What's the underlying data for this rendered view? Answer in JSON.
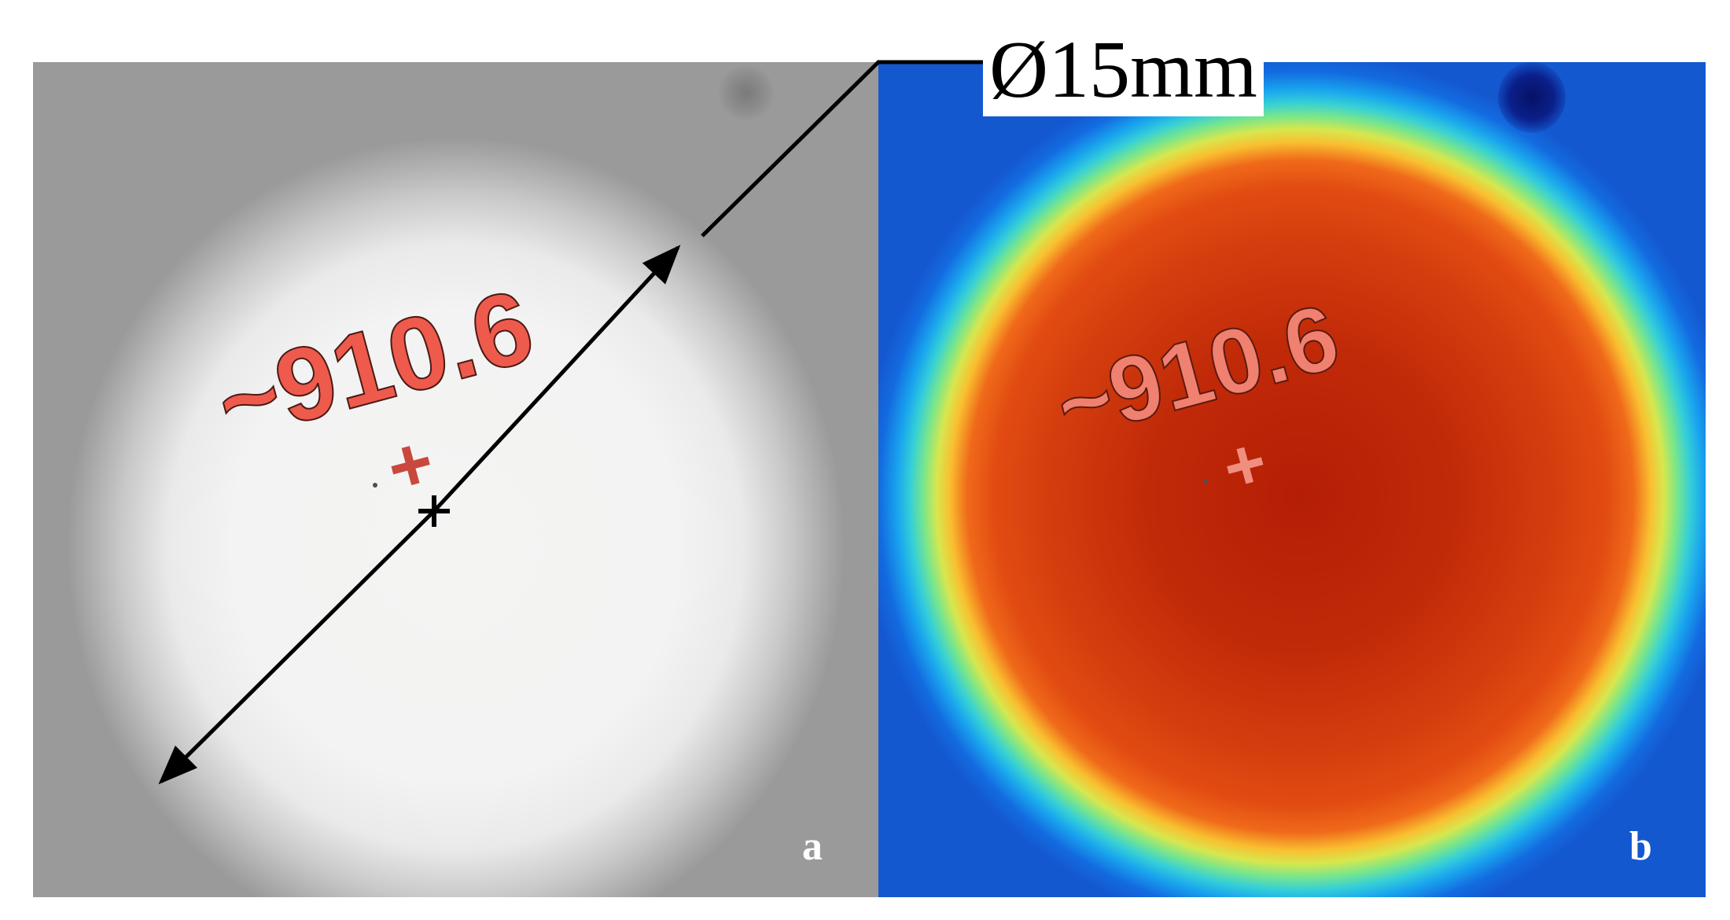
{
  "figure": {
    "diameter_label": "Ø15mm",
    "panels": [
      {
        "id": "a",
        "label": "a",
        "style": "grayscale",
        "temperature_reading": "~910.6",
        "crosshair": "+"
      },
      {
        "id": "b",
        "label": "b",
        "style": "thermal-colormap",
        "temperature_reading": "~910.6",
        "crosshair": "+"
      }
    ],
    "colors": {
      "arrow": "#000000",
      "reading_text": "#ee5a4c",
      "thermal_core": "#b41e05",
      "thermal_edge": "#1458d0"
    },
    "icons": {
      "double_arrow": "double-headed-arrow-icon",
      "center_marker": "cross-marker-icon"
    }
  }
}
